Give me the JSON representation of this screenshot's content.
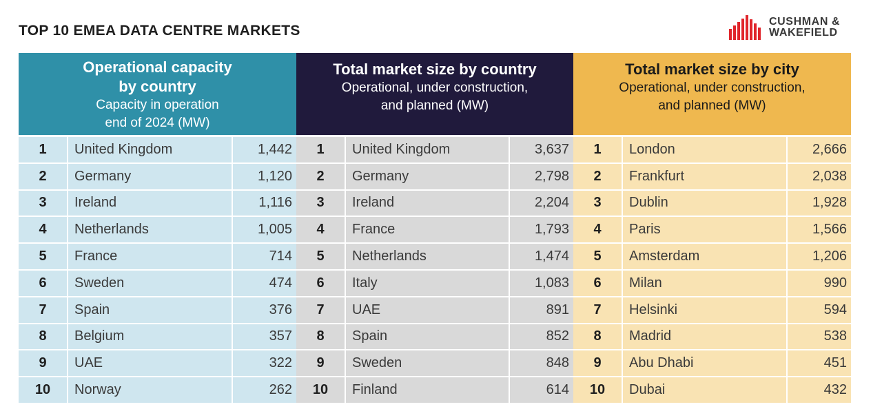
{
  "header": {
    "title": "TOP 10 EMEA DATA CENTRE MARKETS",
    "logo_line1": "CUSHMAN &",
    "logo_line2": "WAKEFIELD",
    "logo_color": "#e0252b"
  },
  "colors": {
    "operational_header": "#2f90a8",
    "country_header": "#201a3c",
    "city_header": "#efb84f",
    "operational_rows": "#cfe6ef",
    "country_rows": "#d9d9d9",
    "city_rows": "#f9e3b3"
  },
  "chart_data": [
    {
      "type": "table",
      "title": "Operational capacity by country",
      "subtitle_line1": "Capacity in operation",
      "subtitle_line2": "end of 2024 (MW)",
      "title_line1": "Operational capacity",
      "title_line2": "by country",
      "rows": [
        {
          "rank": "1",
          "name": "United Kingdom",
          "value": "1,442"
        },
        {
          "rank": "2",
          "name": "Germany",
          "value": "1,120"
        },
        {
          "rank": "3",
          "name": "Ireland",
          "value": "1,116"
        },
        {
          "rank": "4",
          "name": "Netherlands",
          "value": "1,005"
        },
        {
          "rank": "5",
          "name": "France",
          "value": "714"
        },
        {
          "rank": "6",
          "name": "Sweden",
          "value": "474"
        },
        {
          "rank": "7",
          "name": "Spain",
          "value": "376"
        },
        {
          "rank": "8",
          "name": "Belgium",
          "value": "357"
        },
        {
          "rank": "9",
          "name": "UAE",
          "value": "322"
        },
        {
          "rank": "10",
          "name": "Norway",
          "value": "262"
        }
      ]
    },
    {
      "type": "table",
      "title": "Total market size by country",
      "subtitle_line1": "Operational, under construction,",
      "subtitle_line2": "and planned (MW)",
      "rows": [
        {
          "rank": "1",
          "name": "United Kingdom",
          "value": "3,637"
        },
        {
          "rank": "2",
          "name": "Germany",
          "value": "2,798"
        },
        {
          "rank": "3",
          "name": "Ireland",
          "value": "2,204"
        },
        {
          "rank": "4",
          "name": "France",
          "value": "1,793"
        },
        {
          "rank": "5",
          "name": "Netherlands",
          "value": "1,474"
        },
        {
          "rank": "6",
          "name": "Italy",
          "value": "1,083"
        },
        {
          "rank": "7",
          "name": "UAE",
          "value": "891"
        },
        {
          "rank": "8",
          "name": "Spain",
          "value": "852"
        },
        {
          "rank": "9",
          "name": "Sweden",
          "value": "848"
        },
        {
          "rank": "10",
          "name": "Finland",
          "value": "614"
        }
      ]
    },
    {
      "type": "table",
      "title": "Total market size by city",
      "subtitle_line1": "Operational, under construction,",
      "subtitle_line2": "and planned (MW)",
      "rows": [
        {
          "rank": "1",
          "name": "London",
          "value": "2,666"
        },
        {
          "rank": "2",
          "name": "Frankfurt",
          "value": "2,038"
        },
        {
          "rank": "3",
          "name": "Dublin",
          "value": "1,928"
        },
        {
          "rank": "4",
          "name": "Paris",
          "value": "1,566"
        },
        {
          "rank": "5",
          "name": "Amsterdam",
          "value": "1,206"
        },
        {
          "rank": "6",
          "name": "Milan",
          "value": "990"
        },
        {
          "rank": "7",
          "name": "Helsinki",
          "value": "594"
        },
        {
          "rank": "8",
          "name": "Madrid",
          "value": "538"
        },
        {
          "rank": "9",
          "name": "Abu Dhabi",
          "value": "451"
        },
        {
          "rank": "10",
          "name": "Dubai",
          "value": "432"
        }
      ]
    }
  ]
}
